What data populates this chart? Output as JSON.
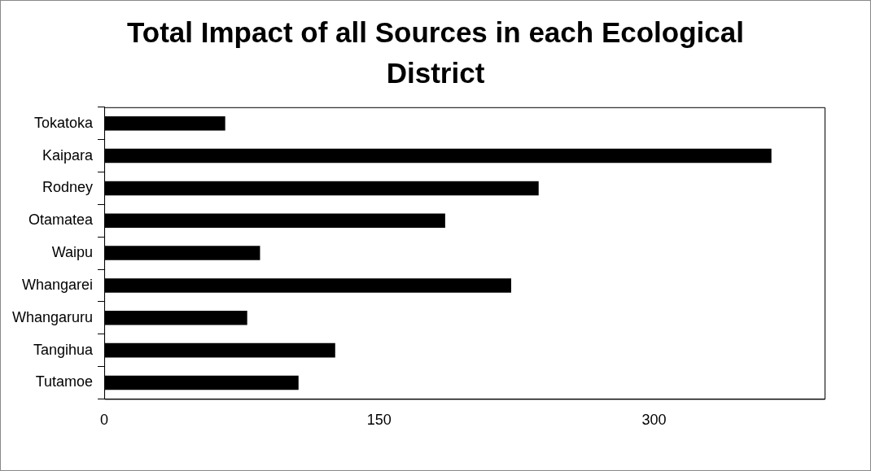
{
  "chart_data": {
    "type": "bar",
    "orientation": "horizontal",
    "title": "Total Impact of all Sources in each Ecological District",
    "categories": [
      "Tokatoka",
      "Kaipara",
      "Rodney",
      "Otamatea",
      "Waipu",
      "Whangarei",
      "Whangaruru",
      "Tangihua",
      "Tutamoe"
    ],
    "values": [
      66,
      364,
      237,
      186,
      85,
      222,
      78,
      126,
      106
    ],
    "color": "#000000",
    "xlim": [
      0,
      393
    ],
    "xticks": [
      0,
      150,
      300
    ],
    "grid": false,
    "legend": false
  }
}
